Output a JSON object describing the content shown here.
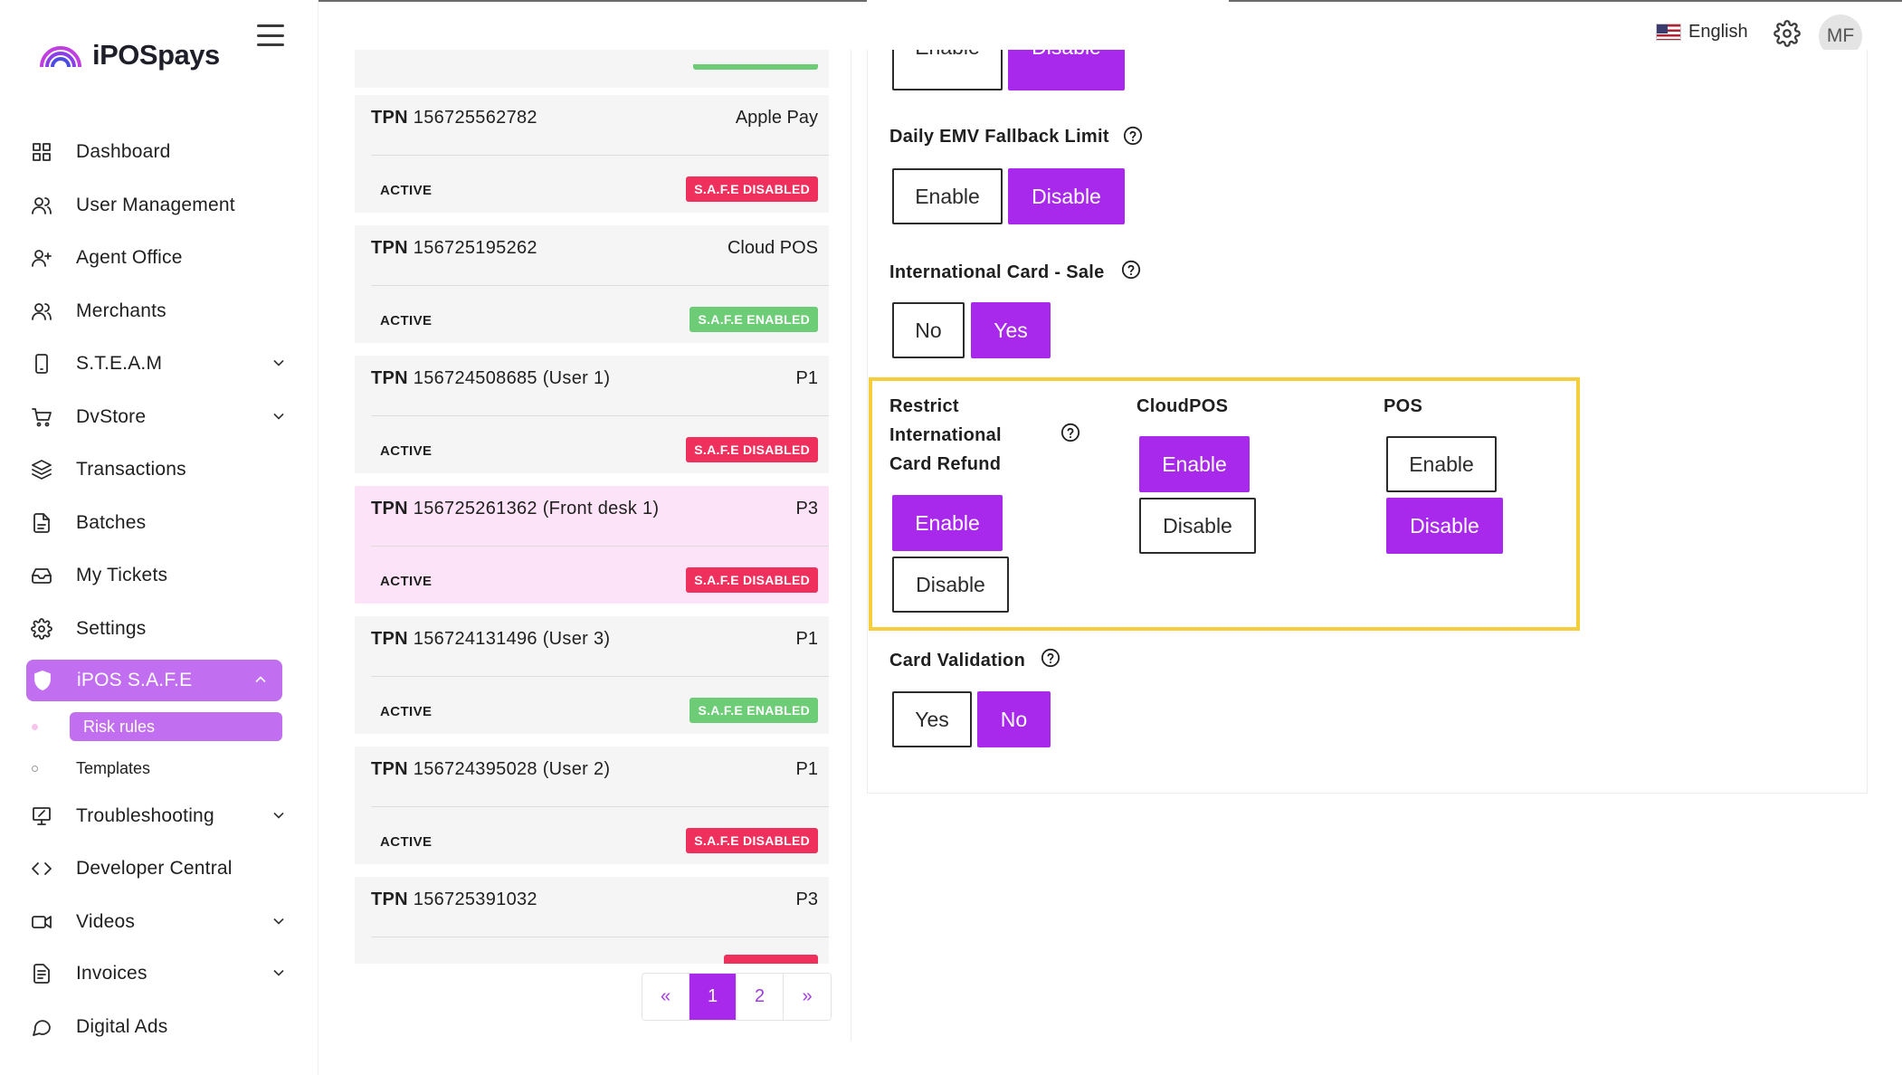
{
  "brand": {
    "name": "iPOSpays"
  },
  "header": {
    "language": "English",
    "avatar_initials": "MF"
  },
  "sidebar": {
    "items": [
      {
        "label": "Dashboard",
        "icon": "grid-icon"
      },
      {
        "label": "User Management",
        "icon": "users-icon"
      },
      {
        "label": "Agent Office",
        "icon": "user-plus-icon"
      },
      {
        "label": "Merchants",
        "icon": "users-icon"
      },
      {
        "label": "S.T.E.A.M",
        "icon": "tablet-icon"
      },
      {
        "label": "DvStore",
        "icon": "cart-icon"
      },
      {
        "label": "Transactions",
        "icon": "layers-icon"
      },
      {
        "label": "Batches",
        "icon": "document-icon"
      },
      {
        "label": "My Tickets",
        "icon": "inbox-icon"
      },
      {
        "label": "Settings",
        "icon": "gear-icon"
      },
      {
        "label": "iPOS S.A.F.E",
        "icon": "shield-icon"
      },
      {
        "label": "Troubleshooting",
        "icon": "monitor-icon"
      },
      {
        "label": "Developer Central",
        "icon": "code-icon"
      },
      {
        "label": "Videos",
        "icon": "video-icon"
      },
      {
        "label": "Invoices",
        "icon": "invoice-icon"
      },
      {
        "label": "Digital Ads",
        "icon": "chat-icon"
      }
    ],
    "subitems": [
      {
        "label": "Risk rules"
      },
      {
        "label": "Templates"
      }
    ]
  },
  "terminals": [
    {
      "tpn_prefix": "TPN",
      "tpn": "156725562782",
      "device": "Apple Pay",
      "status": "ACTIVE",
      "safe": "S.A.F.E DISABLED"
    },
    {
      "tpn_prefix": "TPN",
      "tpn": "156725195262",
      "device": "Cloud POS",
      "status": "ACTIVE",
      "safe": "S.A.F.E ENABLED"
    },
    {
      "tpn_prefix": "TPN",
      "tpn": "156724508685 (User 1)",
      "device": "P1",
      "status": "ACTIVE",
      "safe": "S.A.F.E DISABLED"
    },
    {
      "tpn_prefix": "TPN",
      "tpn": "156725261362 (Front desk 1)",
      "device": "P3",
      "status": "ACTIVE",
      "safe": "S.A.F.E DISABLED"
    },
    {
      "tpn_prefix": "TPN",
      "tpn": "156724131496 (User 3)",
      "device": "P1",
      "status": "ACTIVE",
      "safe": "S.A.F.E ENABLED"
    },
    {
      "tpn_prefix": "TPN",
      "tpn": "156724395028 (User 2)",
      "device": "P1",
      "status": "ACTIVE",
      "safe": "S.A.F.E DISABLED"
    },
    {
      "tpn_prefix": "TPN",
      "tpn": "156725391032",
      "device": "P3"
    }
  ],
  "pagination": {
    "prev": "«",
    "pages": [
      "1",
      "2"
    ],
    "next": "»",
    "current": "1"
  },
  "settings": {
    "top_partial": {
      "enable": "Enable",
      "disable": "Disable"
    },
    "emv_fallback": {
      "label": "Daily EMV Fallback Limit",
      "enable": "Enable",
      "disable": "Disable"
    },
    "intl_sale": {
      "label": "International Card - Sale",
      "no": "No",
      "yes": "Yes"
    },
    "restrict_refund": {
      "label_line1": "Restrict",
      "label_line2": "International",
      "label_line3": "Card Refund",
      "enable": "Enable",
      "disable": "Disable",
      "cloudpos": {
        "label": "CloudPOS",
        "enable": "Enable",
        "disable": "Disable"
      },
      "pos": {
        "label": "POS",
        "enable": "Enable",
        "disable": "Disable"
      }
    },
    "card_validation": {
      "label": "Card Validation",
      "yes": "Yes",
      "no": "No"
    }
  },
  "colors": {
    "accent": "#a829ec",
    "nav_active": "#c16ef0",
    "badge_disabled": "#ef2f5c",
    "badge_enabled": "#6ccd76",
    "highlight_border": "#f6cd3b",
    "row_highlight": "#fde3f7"
  }
}
